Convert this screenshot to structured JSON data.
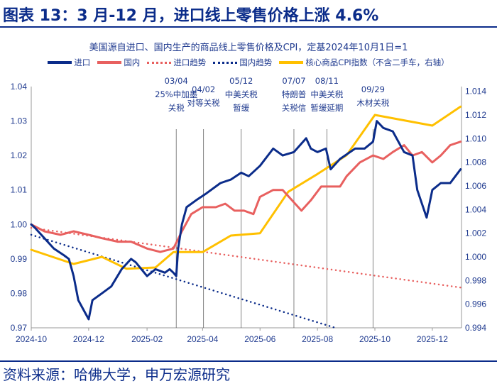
{
  "title": "图表 13：3 月-12 月，进口线上零售价格上涨 4.6%",
  "source": "资料来源：哈佛大学，申万宏源研究",
  "chart_data": {
    "type": "line",
    "title": "美国源自进口、国内生产的商品线上零售价格及CPI，定基2024年10月1日=1",
    "xlim": [
      "2024-10-01",
      "2026-01-01"
    ],
    "x_ticks": [
      "2024-10",
      "2024-12",
      "2025-02",
      "2025-04",
      "2025-06",
      "2025-08",
      "2025-10",
      "2025-12"
    ],
    "ylim_left": [
      0.97,
      1.04
    ],
    "y_ticks_left": [
      "1.04",
      "1.03",
      "1.02",
      "1.01",
      "1.00",
      "0.99",
      "0.98",
      "0.97"
    ],
    "ylim_right": [
      0.994,
      1.0144
    ],
    "y_ticks_right": [
      "1.014",
      "1.012",
      "1.010",
      "1.008",
      "1.006",
      "1.004",
      "1.002",
      "1.000",
      "0.998",
      "0.996",
      "0.994"
    ],
    "legend_placement": "top",
    "series": [
      {
        "name": "进口",
        "axis": "left",
        "style": "solid",
        "color": "#0b2c8a",
        "points": [
          [
            "2024-10-01",
            1.0
          ],
          [
            "2024-10-05",
            0.999
          ],
          [
            "2024-10-15",
            0.996
          ],
          [
            "2024-10-25",
            0.993
          ],
          [
            "2024-11-05",
            0.991
          ],
          [
            "2024-11-10",
            0.99
          ],
          [
            "2024-11-15",
            0.985
          ],
          [
            "2024-11-20",
            0.978
          ],
          [
            "2024-11-28",
            0.974
          ],
          [
            "2024-12-01",
            0.9725
          ],
          [
            "2024-12-05",
            0.978
          ],
          [
            "2024-12-15",
            0.98
          ],
          [
            "2024-12-25",
            0.982
          ],
          [
            "2025-01-05",
            0.987
          ],
          [
            "2025-01-15",
            0.99
          ],
          [
            "2025-01-20",
            0.989
          ],
          [
            "2025-02-01",
            0.985
          ],
          [
            "2025-02-10",
            0.987
          ],
          [
            "2025-02-20",
            0.986
          ],
          [
            "2025-02-25",
            0.987
          ],
          [
            "2025-03-01",
            0.986
          ],
          [
            "2025-03-04",
            0.985
          ],
          [
            "2025-03-06",
            0.993
          ],
          [
            "2025-03-10",
            1.0
          ],
          [
            "2025-03-15",
            1.005
          ],
          [
            "2025-03-25",
            1.007
          ],
          [
            "2025-04-05",
            1.009
          ],
          [
            "2025-04-20",
            1.012
          ],
          [
            "2025-05-01",
            1.013
          ],
          [
            "2025-05-12",
            1.015
          ],
          [
            "2025-05-20",
            1.014
          ],
          [
            "2025-06-01",
            1.017
          ],
          [
            "2025-06-15",
            1.022
          ],
          [
            "2025-06-25",
            1.02
          ],
          [
            "2025-07-07",
            1.021
          ],
          [
            "2025-07-20",
            1.025
          ],
          [
            "2025-07-25",
            1.022
          ],
          [
            "2025-08-01",
            1.021
          ],
          [
            "2025-08-10",
            1.022
          ],
          [
            "2025-08-15",
            1.016
          ],
          [
            "2025-08-25",
            1.019
          ],
          [
            "2025-09-10",
            1.022
          ],
          [
            "2025-09-20",
            1.022
          ],
          [
            "2025-09-29",
            1.024
          ],
          [
            "2025-10-03",
            1.03
          ],
          [
            "2025-10-10",
            1.028
          ],
          [
            "2025-10-20",
            1.027
          ],
          [
            "2025-11-01",
            1.021
          ],
          [
            "2025-11-10",
            1.02
          ],
          [
            "2025-11-15",
            1.01
          ],
          [
            "2025-11-25",
            1.002
          ],
          [
            "2025-12-01",
            1.01
          ],
          [
            "2025-12-10",
            1.012
          ],
          [
            "2025-12-20",
            1.012
          ],
          [
            "2025-12-31",
            1.016
          ]
        ]
      },
      {
        "name": "国内",
        "axis": "left",
        "style": "solid",
        "color": "#e8605f",
        "points": [
          [
            "2024-10-01",
            1.0
          ],
          [
            "2024-10-15",
            0.998
          ],
          [
            "2024-11-01",
            0.997
          ],
          [
            "2024-11-15",
            0.998
          ],
          [
            "2024-12-01",
            0.997
          ],
          [
            "2024-12-15",
            0.996
          ],
          [
            "2025-01-01",
            0.995
          ],
          [
            "2025-01-15",
            0.995
          ],
          [
            "2025-02-01",
            0.993
          ],
          [
            "2025-02-15",
            0.992
          ],
          [
            "2025-03-01",
            0.993
          ],
          [
            "2025-03-10",
            0.998
          ],
          [
            "2025-03-20",
            1.003
          ],
          [
            "2025-04-01",
            1.005
          ],
          [
            "2025-04-15",
            1.005
          ],
          [
            "2025-04-25",
            1.006
          ],
          [
            "2025-05-05",
            1.004
          ],
          [
            "2025-05-15",
            1.004
          ],
          [
            "2025-05-25",
            1.003
          ],
          [
            "2025-06-01",
            1.008
          ],
          [
            "2025-06-15",
            1.01
          ],
          [
            "2025-06-25",
            1.01
          ],
          [
            "2025-07-05",
            1.007
          ],
          [
            "2025-07-15",
            1.004
          ],
          [
            "2025-07-25",
            1.007
          ],
          [
            "2025-08-05",
            1.011
          ],
          [
            "2025-08-15",
            1.011
          ],
          [
            "2025-08-25",
            1.011
          ],
          [
            "2025-09-01",
            1.014
          ],
          [
            "2025-09-15",
            1.018
          ],
          [
            "2025-09-29",
            1.02
          ],
          [
            "2025-10-10",
            1.019
          ],
          [
            "2025-10-20",
            1.021
          ],
          [
            "2025-11-01",
            1.023
          ],
          [
            "2025-11-10",
            1.02
          ],
          [
            "2025-11-20",
            1.021
          ],
          [
            "2025-12-01",
            1.018
          ],
          [
            "2025-12-10",
            1.02
          ],
          [
            "2025-12-20",
            1.023
          ],
          [
            "2025-12-31",
            1.024
          ]
        ]
      },
      {
        "name": "进口趋势",
        "axis": "left",
        "style": "dotted",
        "color": "#e8605f",
        "points": [
          [
            "2024-10-01",
            0.999
          ],
          [
            "2025-12-31",
            0.9817
          ]
        ]
      },
      {
        "name": "国内趋势",
        "axis": "left",
        "style": "dotted",
        "color": "#0b2c8a",
        "points": [
          [
            "2024-10-01",
            0.997
          ],
          [
            "2025-08-20",
            0.97
          ]
        ]
      },
      {
        "name": "核心商品CPI指数（不含二手车，右轴）",
        "axis": "right",
        "style": "solid",
        "color": "#ffc000",
        "points": [
          [
            "2024-10-01",
            1.0006
          ],
          [
            "2024-11-15",
            0.9994
          ],
          [
            "2024-12-15",
            1.0
          ],
          [
            "2025-01-10",
            0.999
          ],
          [
            "2025-02-10",
            0.9991
          ],
          [
            "2025-03-01",
            1.0004
          ],
          [
            "2025-04-01",
            1.0004
          ],
          [
            "2025-05-01",
            1.0018
          ],
          [
            "2025-06-01",
            1.002
          ],
          [
            "2025-07-01",
            1.0055
          ],
          [
            "2025-08-01",
            1.007
          ],
          [
            "2025-09-01",
            1.0086
          ],
          [
            "2025-10-01",
            1.012
          ],
          [
            "2025-12-01",
            1.0111
          ],
          [
            "2025-12-31",
            1.0127
          ]
        ]
      }
    ],
    "annotations": [
      {
        "date": "2025-03-04",
        "lines": [
          "03/04",
          "25%中加墨",
          "关税"
        ]
      },
      {
        "date": "2025-04-02",
        "lines": [
          "04/02",
          "对等关税"
        ]
      },
      {
        "date": "2025-05-12",
        "lines": [
          "05/12",
          "中美关税",
          "暂缓"
        ]
      },
      {
        "date": "2025-07-07",
        "lines": [
          "07/07",
          "特朗普",
          "关税信"
        ]
      },
      {
        "date": "2025-08-11",
        "lines": [
          "08/11",
          "中美关税",
          "暂缓延期"
        ]
      },
      {
        "date": "2025-09-29",
        "lines": [
          "09/29",
          "木材关税"
        ]
      }
    ]
  }
}
